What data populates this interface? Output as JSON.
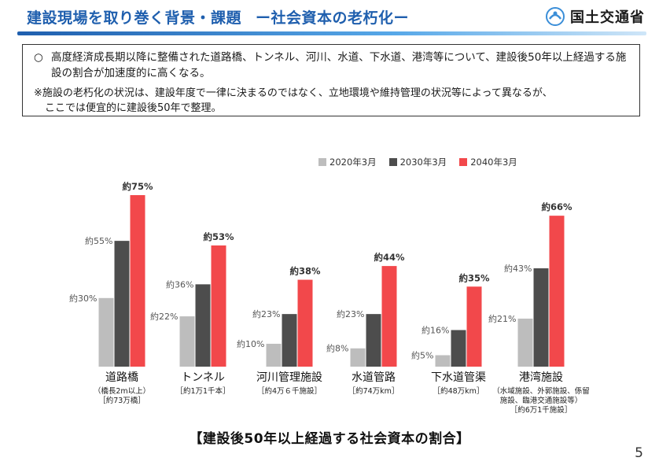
{
  "header": {
    "title": "建設現場を取り巻く背景・課題",
    "subtitle": "ー社会資本の老朽化ー",
    "logo_text": "国土交通省",
    "logo_icon": "mlit-logo-icon"
  },
  "note": {
    "bullet": "○",
    "main": "高度経済成長期以降に整備された道路橋、トンネル、河川、水道、下水道、港湾等について、建設後50年以上経過する施設の割合が加速度的に高くなる。",
    "sub_line1": "※施設の老朽化の状況は、建設年度で一律に決まるのではなく、立地環境や維持管理の状況等によって異なるが、",
    "sub_line2": "ここでは便宜的に建設後50年で整理。"
  },
  "caption": "【建設後50年以上経過する社会資本の割合】",
  "page_number": "5",
  "colors": {
    "series_2020": "#bdbdbd",
    "series_2030": "#4d4d4d",
    "series_2040": "#f2484b",
    "title": "#1f5fae"
  },
  "chart_data": {
    "type": "bar",
    "title": "【建設後50年以上経過する社会資本の割合】",
    "xlabel": "",
    "ylabel": "",
    "ylim": [
      0,
      80
    ],
    "legend_position": "top-right",
    "grid": false,
    "categories": [
      "道路橋",
      "トンネル",
      "河川管理施設",
      "水道管路",
      "下水道管渠",
      "港湾施設"
    ],
    "category_notes": [
      [
        "（橋長2m以上）",
        "［約73万橋］"
      ],
      [
        "［約1万1千本］"
      ],
      [
        "［約4万６千施設］"
      ],
      [
        "［約74万km］"
      ],
      [
        "［約48万km］"
      ],
      [
        "（水域施設、外郭施設、係留",
        "施設、臨港交通施設等）",
        "［約6万1千施設］"
      ]
    ],
    "series": [
      {
        "name": "2020年3月",
        "values": [
          30,
          22,
          10,
          8,
          5,
          21
        ],
        "labels": [
          "約30%",
          "約22%",
          "約10%",
          "約8%",
          "約5%",
          "約21%"
        ]
      },
      {
        "name": "2030年3月",
        "values": [
          55,
          36,
          23,
          23,
          16,
          43
        ],
        "labels": [
          "約55%",
          "約36%",
          "約23%",
          "約23%",
          "約16%",
          "約43%"
        ]
      },
      {
        "name": "2040年3月",
        "values": [
          75,
          53,
          38,
          44,
          35,
          66
        ],
        "labels": [
          "約75%",
          "約53%",
          "約38%",
          "約44%",
          "約35%",
          "約66%"
        ]
      }
    ]
  }
}
